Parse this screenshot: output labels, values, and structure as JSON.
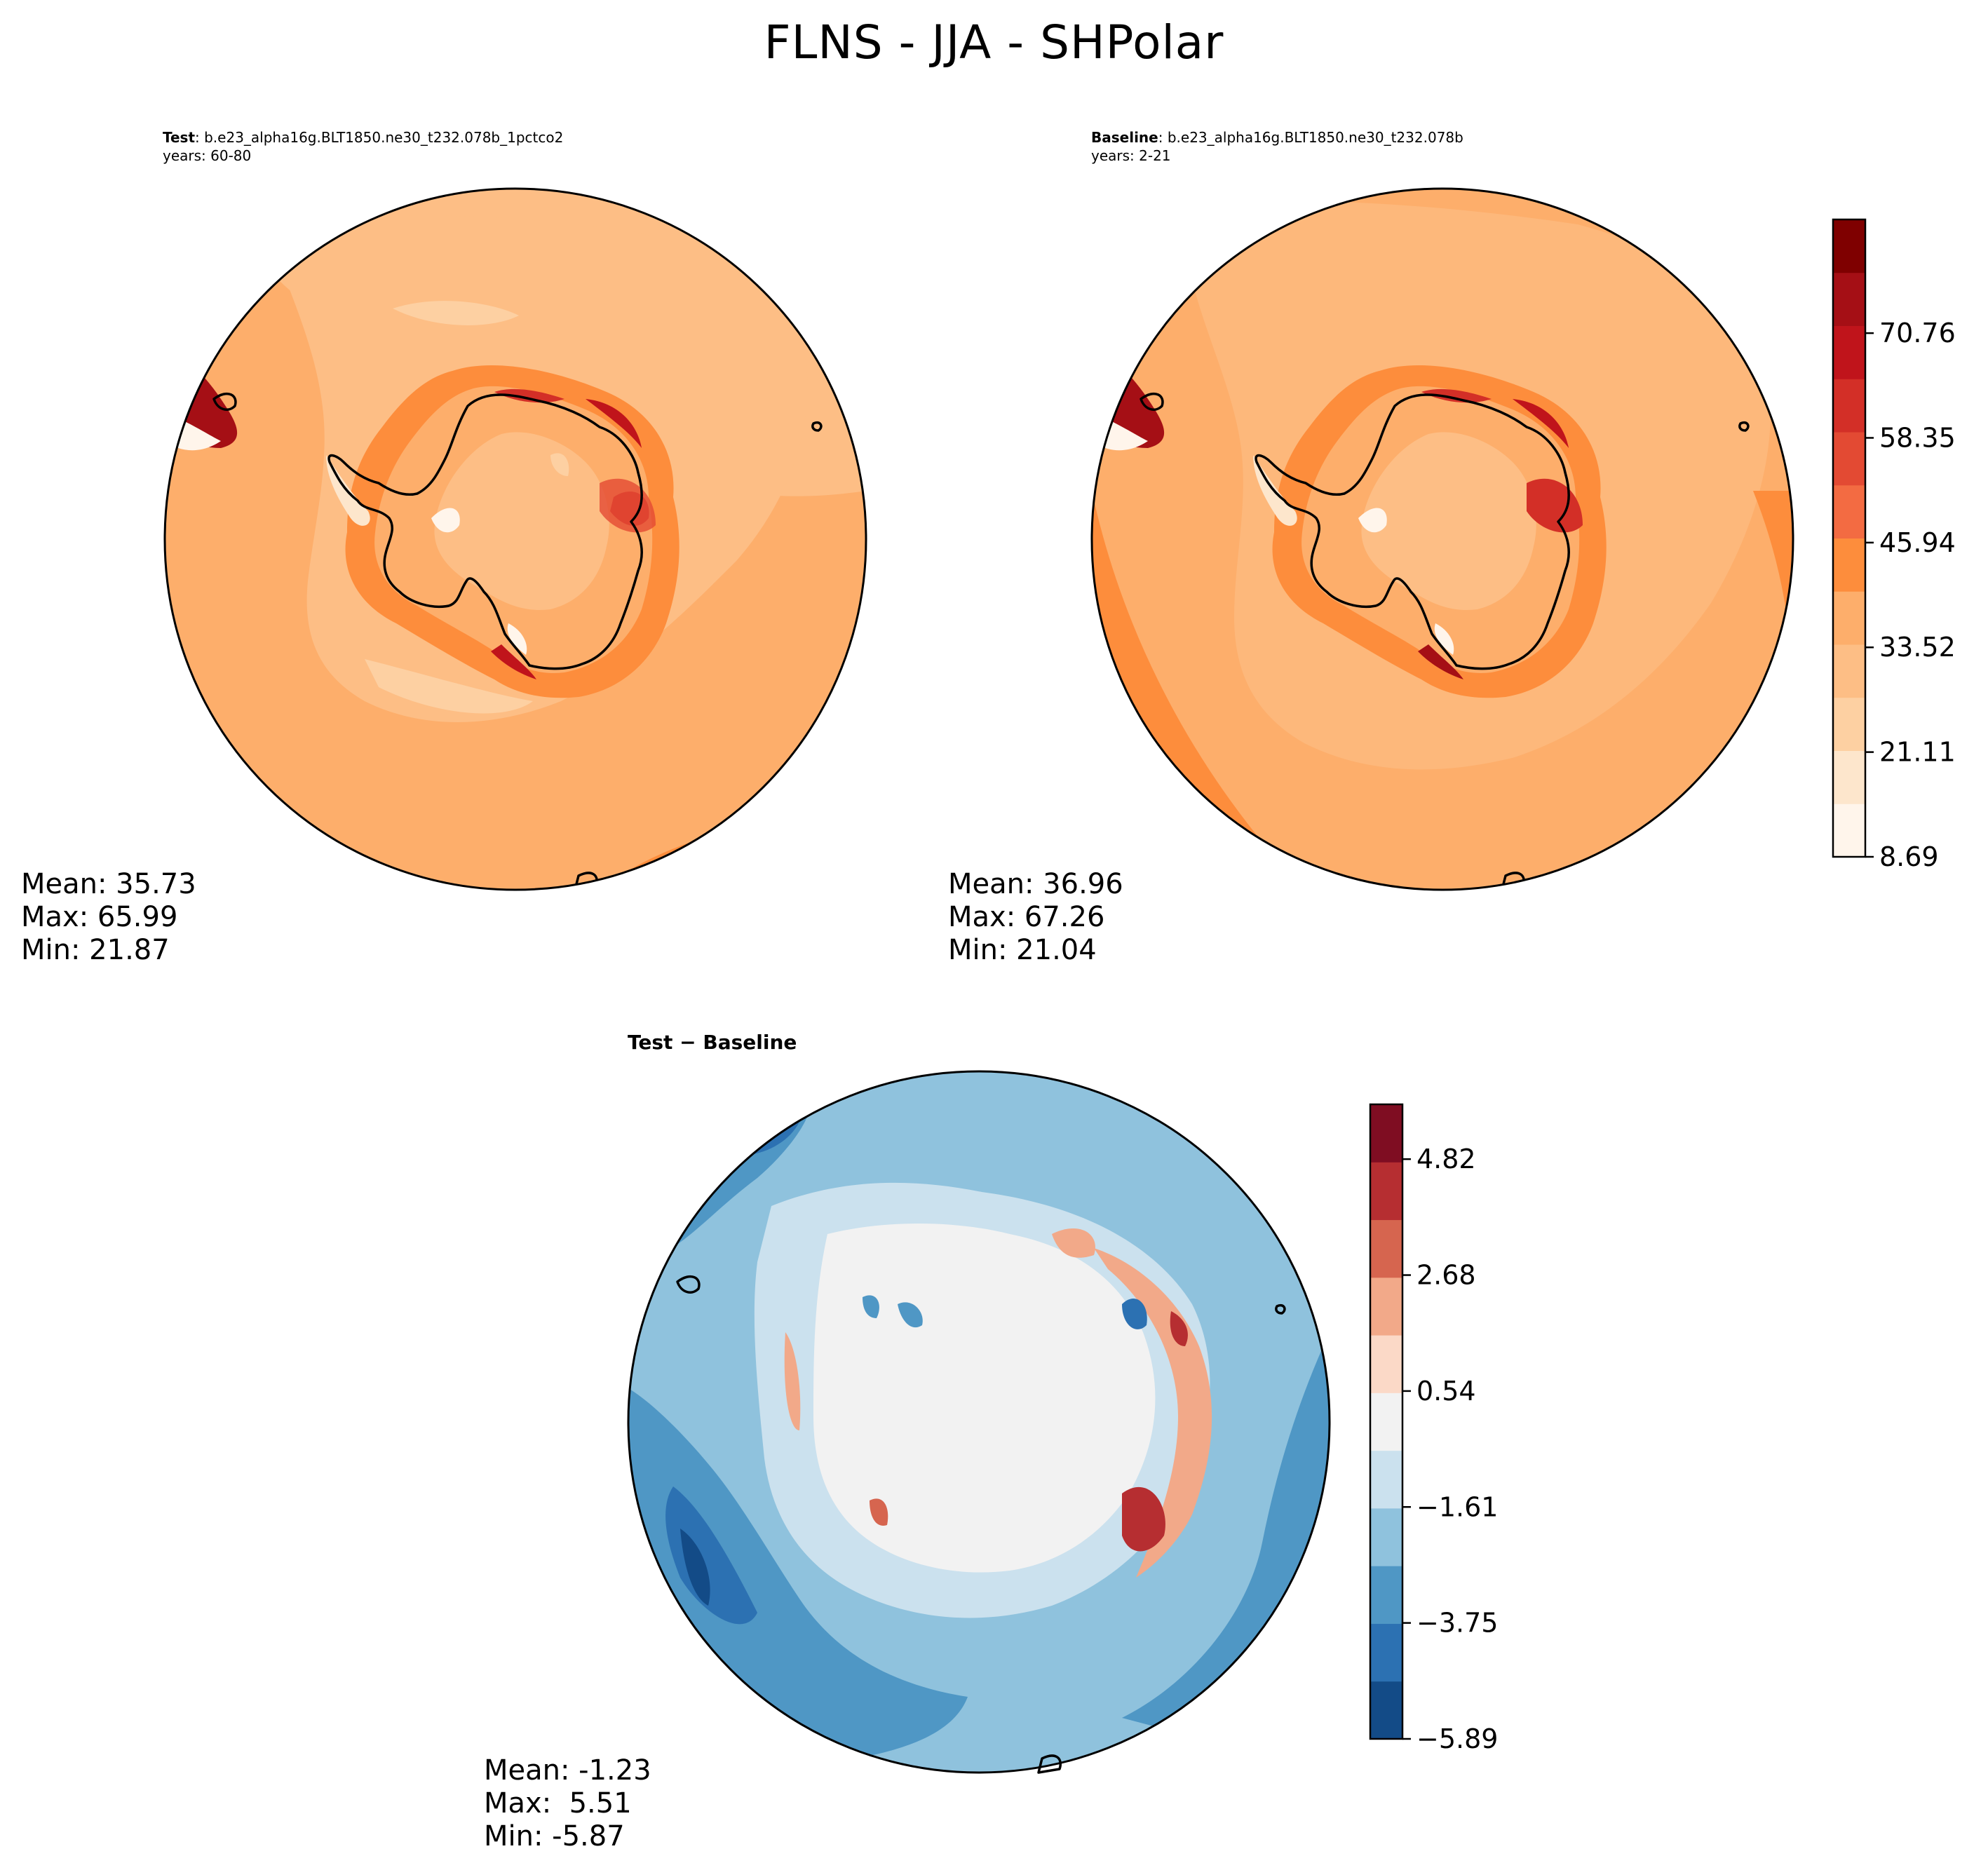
{
  "figure": {
    "title": "FLNS - JJA - SHPolar"
  },
  "panels": [
    {
      "id": "test",
      "label": "Test",
      "case": ": b.e23_alpha16g.BLT1850.ne30_t232.078b_1pctco2",
      "years": "years: 60-80",
      "stats": {
        "mean": "Mean: 35.73",
        "max": "Max: 65.99",
        "min": "Min: 21.87"
      }
    },
    {
      "id": "baseline",
      "label": "Baseline",
      "case": ": b.e23_alpha16g.BLT1850.ne30_t232.078b",
      "years": "years: 2-21",
      "stats": {
        "mean": "Mean: 36.96",
        "max": "Max: 67.26",
        "min": "Min: 21.04"
      }
    },
    {
      "id": "diff",
      "label": "Test − Baseline",
      "stats": {
        "mean": "Mean: -1.23",
        "max": "Max:  5.51",
        "min": "Min: -5.87"
      }
    }
  ],
  "colorbars": {
    "main": {
      "colormap": "Reds-like",
      "ticks": [
        "8.69",
        "21.11",
        "33.52",
        "45.94",
        "58.35",
        "70.76"
      ],
      "colors": [
        "#fff5eb",
        "#fde6cc",
        "#fdd0a2",
        "#fdbe85",
        "#fdae6b",
        "#fd8d3c",
        "#f36b42",
        "#e34a33",
        "#d32f27",
        "#c0141b",
        "#a50f15",
        "#7f0000"
      ]
    },
    "diff": {
      "colormap": "RdBu_r",
      "ticks": [
        "−5.89",
        "−3.75",
        "−1.61",
        "0.54",
        "2.68",
        "4.82"
      ],
      "colors": [
        "#134b87",
        "#2c71b2",
        "#4f97c5",
        "#8fc2dd",
        "#cbe1ee",
        "#f2f2f2",
        "#fbd9c7",
        "#f2a989",
        "#d6654f",
        "#b62e31",
        "#7f0d22"
      ]
    }
  }
}
